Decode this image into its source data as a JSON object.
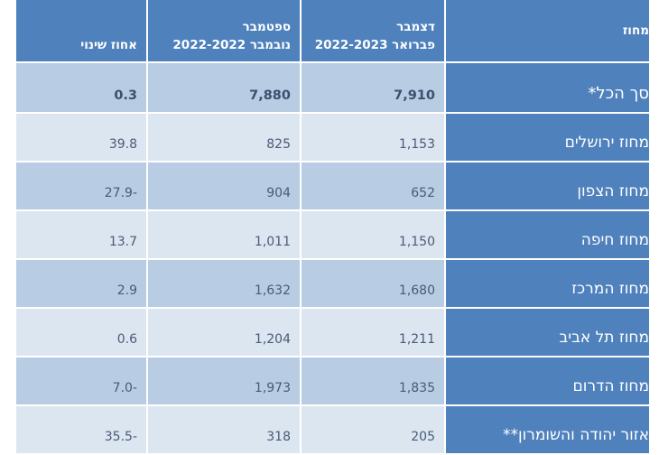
{
  "headers": {
    "district": "מחוז",
    "dec_feb_line1": "דצמבר",
    "dec_feb_line2": "2022-פברואר 2023",
    "sep_nov_line1": "ספטמבר",
    "sep_nov_line2": "2022-נובמבר 2022",
    "change_pct": "אחוז שינוי"
  },
  "total": {
    "district": "סך הכל*",
    "dec_feb": "7,910",
    "sep_nov": "7,880",
    "change": "0.3"
  },
  "rows": [
    {
      "district": "מחוז ירושלים",
      "dec_feb": "1,153",
      "sep_nov": "825",
      "change": "39.8"
    },
    {
      "district": "מחוז הצפון",
      "dec_feb": "652",
      "sep_nov": "904",
      "change": "27.9-"
    },
    {
      "district": "מחוז חיפה",
      "dec_feb": "1,150",
      "sep_nov": "1,011",
      "change": "13.7"
    },
    {
      "district": "מחוז המרכז",
      "dec_feb": "1,680",
      "sep_nov": "1,632",
      "change": "2.9"
    },
    {
      "district": "מחוז תל אביב",
      "dec_feb": "1,211",
      "sep_nov": "1,204",
      "change": "0.6"
    },
    {
      "district": "מחוז הדרום",
      "dec_feb": "1,835",
      "sep_nov": "1,973",
      "change": "7.0-"
    },
    {
      "district": "אזור יהודה והשומרון**",
      "dec_feb": "205",
      "sep_nov": "318",
      "change": "35.5-"
    }
  ],
  "colors": {
    "header_bg": "#4f81bd",
    "row_light": "#dce6f1",
    "row_mid": "#b8cce4"
  }
}
